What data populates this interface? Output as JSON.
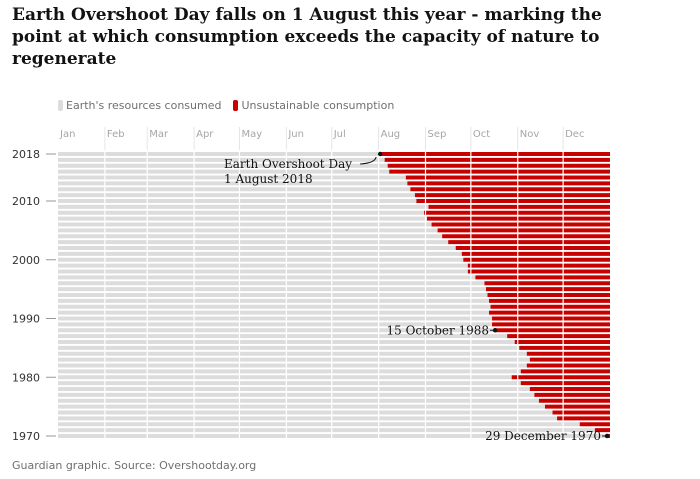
{
  "title": "Earth Overshoot Day falls on 1 August this year - marking the point at which consumption exceeds the capacity of nature to regenerate",
  "source": "Guardian graphic. Source: Overshootday.org",
  "colors": {
    "consumed": "#dcdcdc",
    "unsustainable": "#c70000",
    "text": "#121212",
    "muted": "#707070"
  },
  "chart_data": {
    "type": "bar",
    "orientation": "horizontal",
    "stacked": true,
    "x_ticks": [
      "Jan",
      "Feb",
      "Mar",
      "Apr",
      "May",
      "Jun",
      "Jul",
      "Aug",
      "Sep",
      "Oct",
      "Nov",
      "Dec"
    ],
    "y_ticks": [
      2018,
      2010,
      2000,
      1990,
      1980,
      1970
    ],
    "xlim_days": [
      0,
      365
    ],
    "legend": [
      {
        "label": "Earth's resources consumed",
        "color": "#dcdcdc"
      },
      {
        "label": "Unsustainable consumption",
        "color": "#c70000"
      }
    ],
    "legend_position": "top-left",
    "grid": true,
    "series_note": "values are the overshoot day (day of year) per year",
    "years": [
      1970,
      1971,
      1972,
      1973,
      1974,
      1975,
      1976,
      1977,
      1978,
      1979,
      1980,
      1981,
      1982,
      1983,
      1984,
      1985,
      1986,
      1987,
      1988,
      1989,
      1990,
      1991,
      1992,
      1993,
      1994,
      1995,
      1996,
      1997,
      1998,
      1999,
      2000,
      2001,
      2002,
      2003,
      2004,
      2005,
      2006,
      2007,
      2008,
      2009,
      2010,
      2011,
      2012,
      2013,
      2014,
      2015,
      2016,
      2017,
      2018
    ],
    "overshoot_day": [
      363,
      355,
      345,
      330,
      327,
      322,
      318,
      315,
      312,
      306,
      300,
      306,
      310,
      312,
      310,
      305,
      302,
      297,
      289,
      287,
      287,
      285,
      286,
      285,
      284,
      283,
      282,
      276,
      271,
      271,
      268,
      267,
      263,
      258,
      254,
      251,
      247,
      244,
      242,
      245,
      237,
      236,
      233,
      231,
      230,
      219,
      218,
      216,
      213
    ],
    "annotations": [
      {
        "year": 2018,
        "label_lines": [
          "Earth Overshoot Day",
          "1 August 2018"
        ]
      },
      {
        "year": 1988,
        "label_lines": [
          "15 October 1988"
        ]
      },
      {
        "year": 1970,
        "label_lines": [
          "29 December 1970"
        ]
      }
    ]
  }
}
